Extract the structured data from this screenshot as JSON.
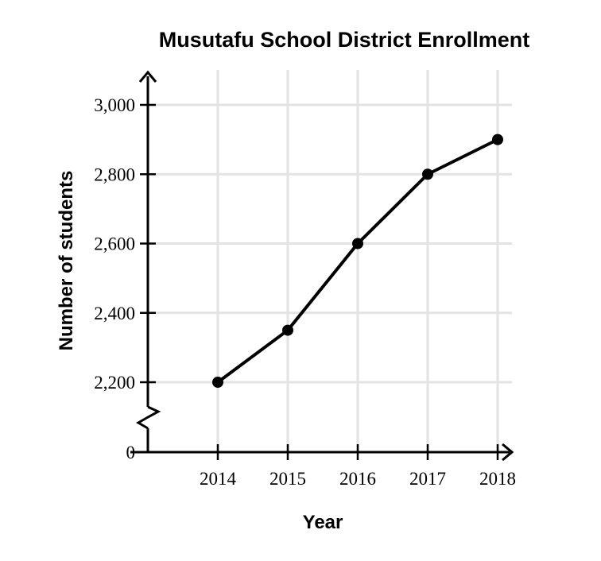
{
  "chart_data": {
    "type": "line",
    "title": "Musutafu School District Enrollment",
    "xlabel": "Year",
    "ylabel": "Number of students",
    "x": [
      "2014",
      "2015",
      "2016",
      "2017",
      "2018"
    ],
    "series": [
      {
        "values": [
          2200,
          2350,
          2600,
          2800,
          2900
        ]
      }
    ],
    "y_ticks": [
      {
        "value": 0,
        "label": "0"
      },
      {
        "value": 2200,
        "label": "2,200"
      },
      {
        "value": 2400,
        "label": "2,400"
      },
      {
        "value": 2600,
        "label": "2,600"
      },
      {
        "value": 2800,
        "label": "2,800"
      },
      {
        "value": 3000,
        "label": "3,000"
      }
    ],
    "ylim": [
      2200,
      3000
    ],
    "y_axis_break": true,
    "grid": true,
    "line_color": "#000000",
    "grid_color": "#e3e3e3"
  }
}
